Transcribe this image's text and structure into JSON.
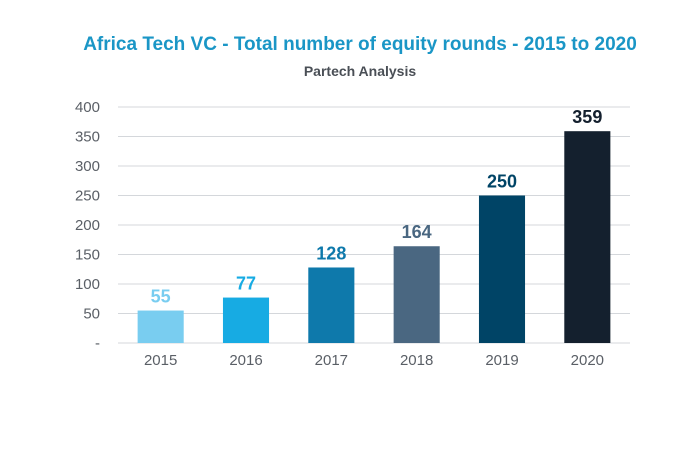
{
  "chart_data": {
    "type": "bar",
    "title": "Africa Tech VC - Total number of equity rounds - 2015 to 2020",
    "subtitle": "Partech Analysis",
    "xlabel": "",
    "ylabel": "",
    "categories": [
      "2015",
      "2016",
      "2017",
      "2018",
      "2019",
      "2020"
    ],
    "values": [
      55,
      77,
      128,
      164,
      250,
      359
    ],
    "data_labels": [
      "55",
      "77",
      "128",
      "164",
      "250",
      "359"
    ],
    "bar_colors": [
      "#79cdf0",
      "#17abe3",
      "#0e79ab",
      "#4a6781",
      "#004466",
      "#14202e"
    ],
    "label_colors": [
      "#79cdf0",
      "#17abe3",
      "#0e79ab",
      "#4a6781",
      "#004466",
      "#14202e"
    ],
    "ylim": [
      0,
      400
    ],
    "y_ticks": [
      0,
      50,
      100,
      150,
      200,
      250,
      300,
      350,
      400
    ],
    "y_tick_labels": [
      "-",
      "50",
      "100",
      "150",
      "200",
      "250",
      "300",
      "350",
      "400"
    ],
    "grid": true,
    "legend": "none"
  }
}
